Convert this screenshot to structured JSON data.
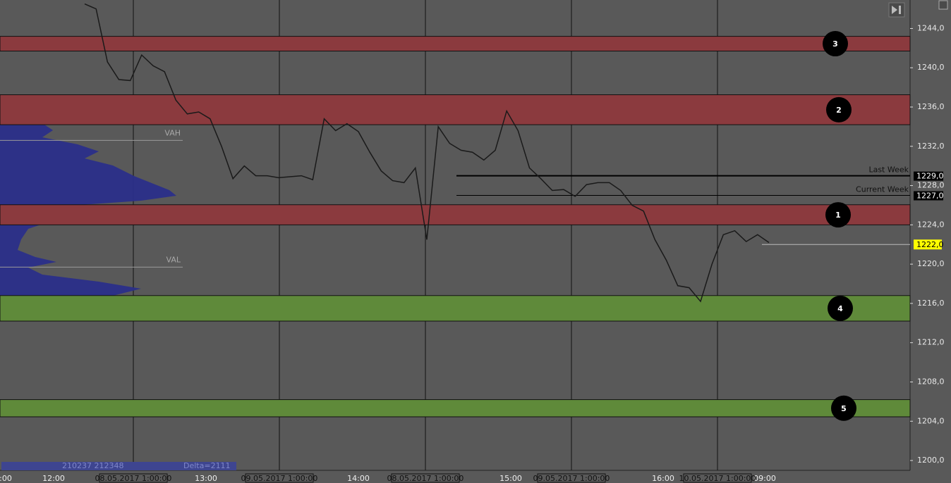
{
  "chart_data": {
    "type": "line",
    "ylim": [
      1199,
      1246.9
    ],
    "yticks": [
      {
        "value": 1244,
        "label": "1244,0"
      },
      {
        "value": 1240,
        "label": "1240,0"
      },
      {
        "value": 1236,
        "label": "1236,0"
      },
      {
        "value": 1232,
        "label": "1232,0"
      },
      {
        "value": 1228,
        "label": "1228,0"
      },
      {
        "value": 1224,
        "label": "1224,0"
      },
      {
        "value": 1220,
        "label": "1220,0"
      },
      {
        "value": 1216,
        "label": "1216,0"
      },
      {
        "value": 1212,
        "label": "1212,0"
      },
      {
        "value": 1208,
        "label": "1208,0"
      },
      {
        "value": 1204,
        "label": "1204,0"
      },
      {
        "value": 1200,
        "label": "1200,0"
      }
    ],
    "categories": [
      null,
      null,
      null,
      null,
      null,
      null,
      null,
      null,
      null,
      null,
      null,
      null,
      null,
      null,
      null,
      null,
      null,
      null,
      null,
      null,
      null,
      null,
      null,
      null,
      null,
      null,
      null,
      null,
      null,
      null,
      null,
      null,
      null,
      null,
      null,
      null,
      null,
      null,
      null,
      null,
      null,
      null,
      null,
      null,
      null,
      null,
      null,
      null,
      null,
      null,
      null,
      null,
      null,
      null,
      null,
      null,
      null,
      null,
      null,
      null,
      null
    ],
    "series": [
      {
        "color": "#1a1a1a",
        "values": [
          1246.5,
          1246,
          1240.6,
          1238.8,
          1238.7,
          1241.3,
          1240.2,
          1239.6,
          1236.7,
          1235.3,
          1235.5,
          1234.8,
          1232,
          1228.7,
          1230,
          1229,
          1229,
          1228.8,
          1228.9,
          1229,
          1228.6,
          1234.8,
          1233.6,
          1234.3,
          1233.5,
          1231.4,
          1229.5,
          1228.5,
          1228.3,
          1229.8,
          1222.5,
          1234,
          1232.3,
          1231.6,
          1231.4,
          1230.6,
          1231.6,
          1235.6,
          1233.6,
          1229.8,
          1228.7,
          1227.5,
          1227.6,
          1226.9,
          1228.1,
          1228.3,
          1228.3,
          1227.5,
          1226,
          1225.4,
          1222.5,
          1220.4,
          1217.8,
          1217.6,
          1216.2,
          1220,
          1223,
          1223.4,
          1222.3,
          1223,
          1222.2
        ]
      }
    ],
    "zones": [
      {
        "label": "3",
        "low": 1241.7,
        "high": 1243.2,
        "color": "#8b3a3e"
      },
      {
        "label": "2",
        "low": 1234.2,
        "high": 1237.25,
        "color": "#8b3a3e"
      },
      {
        "label": "1",
        "low": 1224.0,
        "high": 1226.05,
        "color": "#8b3a3e"
      },
      {
        "label": "4",
        "low": 1214.2,
        "high": 1216.8,
        "color": "#5f8a3a"
      },
      {
        "label": "5",
        "low": 1204.45,
        "high": 1206.2,
        "color": "#5f8a3a"
      }
    ],
    "levels": [
      {
        "name": "Last Week",
        "value": 1229,
        "label": "1229,0"
      },
      {
        "name": "Current Week",
        "value": 1227,
        "label": "1227,0"
      }
    ],
    "value_area": [
      {
        "name": "VAH",
        "value": 1232.6
      },
      {
        "name": "VAL",
        "value": 1219.7
      }
    ],
    "last_price": {
      "value": 1222,
      "label": "1222,0"
    },
    "time_labels": [
      ":00",
      "12:00",
      "13:00",
      "14:00",
      "15:00",
      "16:00",
      "09:00"
    ],
    "date_labels": [
      "08.05.2017 1:00:00",
      "09.05.2017 1:00:00",
      "08.05.2017 1:00:00",
      "09.05.2017 1:00:00",
      "10.05.2017 1:00:00"
    ],
    "footer": {
      "volume": "210237 212348",
      "delta": "Delta=2111"
    }
  }
}
